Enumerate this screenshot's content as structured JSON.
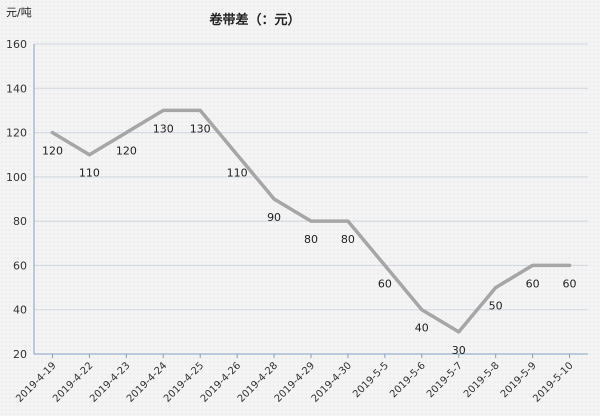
{
  "chart_data": {
    "type": "line",
    "title": "卷带差（：元）",
    "ylabel": "元/吨",
    "xlabel": "",
    "ylim": [
      20,
      160
    ],
    "yticks": [
      20,
      40,
      60,
      80,
      100,
      120,
      140,
      160
    ],
    "grid": true,
    "categories": [
      "2019-4-19",
      "2019-4-22",
      "2019-4-23",
      "2019-4-24",
      "2019-4-25",
      "2019-4-26",
      "2019-4-28",
      "2019-4-29",
      "2019-4-30",
      "2019-5-5",
      "2019-5-6",
      "2019-5-7",
      "2019-5-8",
      "2019-5-9",
      "2019-5-10"
    ],
    "series": [
      {
        "values": [
          120,
          110,
          120,
          130,
          130,
          110,
          90,
          80,
          80,
          60,
          40,
          30,
          50,
          60,
          60
        ],
        "labels": [
          "120",
          "110",
          "120",
          "130",
          "130",
          "110",
          "90",
          "80",
          "80",
          "60",
          "40",
          "30",
          "50",
          "60",
          "60"
        ],
        "color": "#a6a6a6"
      }
    ]
  }
}
